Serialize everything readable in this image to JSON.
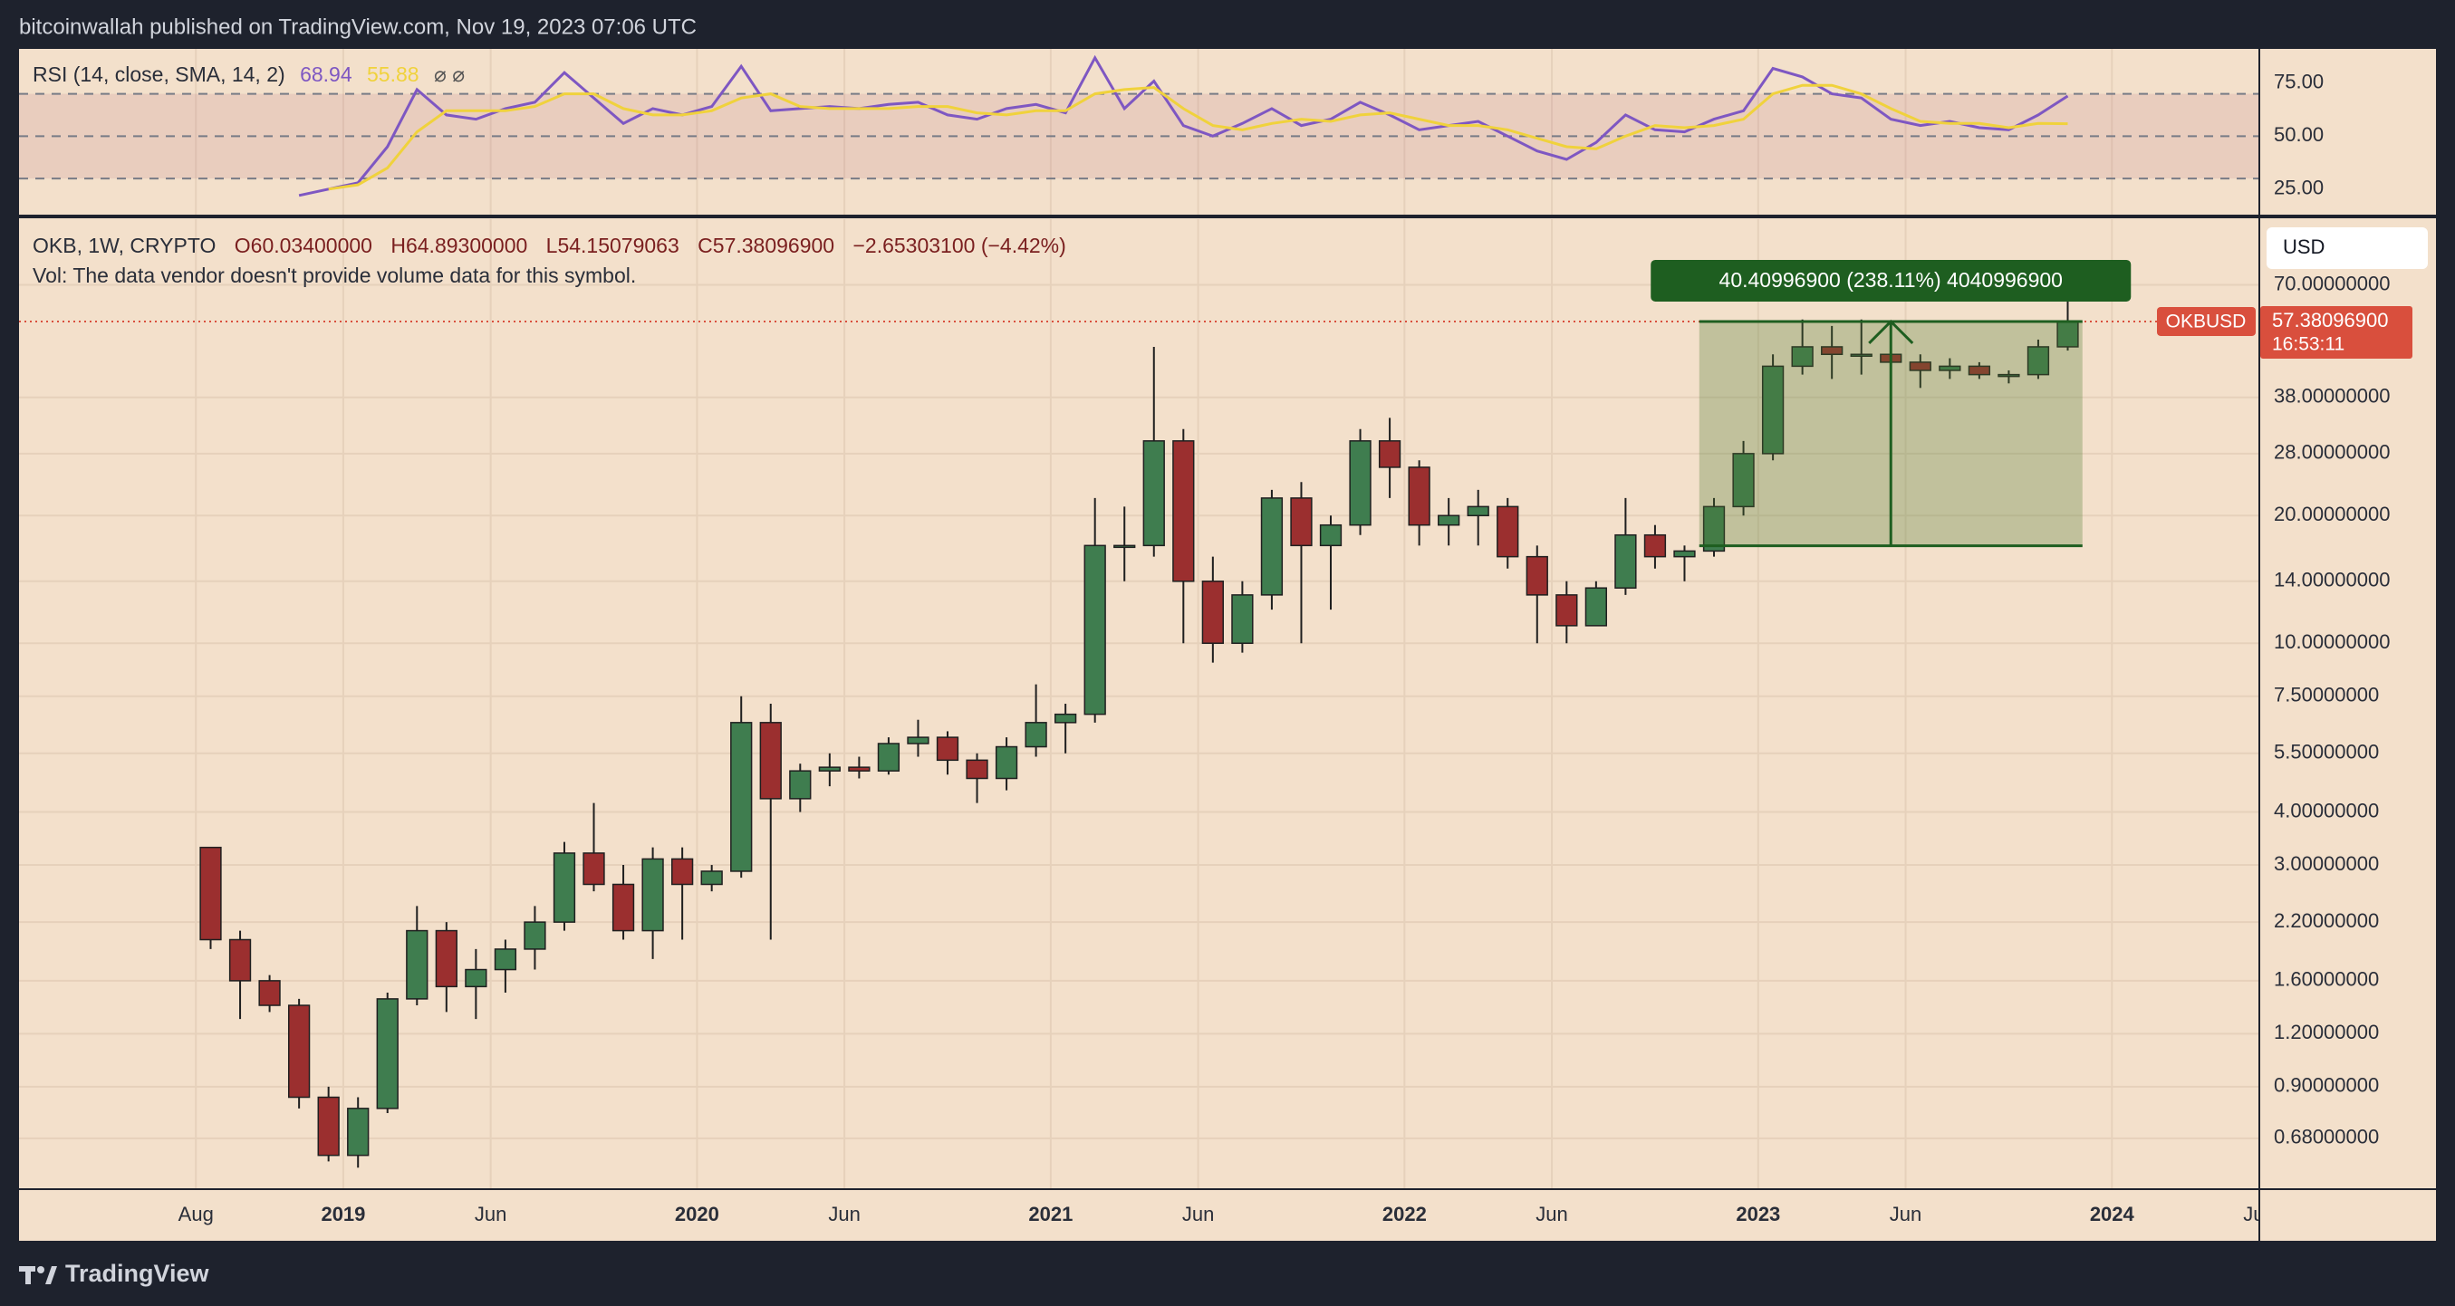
{
  "header": {
    "text": "bitcoinwallah published on TradingView.com, Nov 19, 2023 07:06 UTC"
  },
  "footer": {
    "brand": "TradingView"
  },
  "currency": "USD",
  "chart_data": [
    {
      "type": "candlestick",
      "symbol_line": "OKB, 1W, CRYPTO",
      "legend": {
        "open": "O60.03400000",
        "high": "H64.89300000",
        "low": "L54.15079063",
        "close": "C57.38096900",
        "change": "−2.65303100 (−4.42%)"
      },
      "volume_note": "Vol: The data vendor doesn't provide volume data for this symbol.",
      "x": [
        "2018-08",
        "2018-09",
        "2018-10",
        "2018-11",
        "2018-12",
        "2019-01",
        "2019-02",
        "2019-03",
        "2019-04",
        "2019-05",
        "2019-06",
        "2019-07",
        "2019-08",
        "2019-09",
        "2019-10",
        "2019-11",
        "2019-12",
        "2020-01",
        "2020-02",
        "2020-03",
        "2020-04",
        "2020-05",
        "2020-06",
        "2020-07",
        "2020-08",
        "2020-09",
        "2020-10",
        "2020-11",
        "2020-12",
        "2021-01",
        "2021-02",
        "2021-03",
        "2021-04",
        "2021-05",
        "2021-06",
        "2021-07",
        "2021-08",
        "2021-09",
        "2021-10",
        "2021-11",
        "2021-12",
        "2022-01",
        "2022-02",
        "2022-03",
        "2022-04",
        "2022-05",
        "2022-06",
        "2022-07",
        "2022-08",
        "2022-09",
        "2022-10",
        "2022-11",
        "2022-12",
        "2023-01",
        "2023-02",
        "2023-03",
        "2023-04",
        "2023-05",
        "2023-06",
        "2023-07",
        "2023-08",
        "2023-09",
        "2023-10",
        "2023-11"
      ],
      "open": [
        3.3,
        2.0,
        1.6,
        1.4,
        0.85,
        0.62,
        0.8,
        1.45,
        2.1,
        1.55,
        1.7,
        1.9,
        2.2,
        3.2,
        2.7,
        2.1,
        3.1,
        2.7,
        2.9,
        6.5,
        4.3,
        5.0,
        5.1,
        5.0,
        5.8,
        6.0,
        5.3,
        4.8,
        5.7,
        6.5,
        6.8,
        17,
        17,
        30,
        14,
        10,
        13,
        22,
        17,
        19,
        30,
        26,
        19,
        20,
        21,
        16,
        13,
        11,
        13.5,
        18,
        16,
        16.5,
        21,
        28,
        45,
        50,
        48,
        48,
        46,
        44,
        45,
        43,
        43,
        50
      ],
      "high": [
        3.3,
        2.1,
        1.65,
        1.45,
        0.9,
        0.85,
        1.5,
        2.4,
        2.2,
        1.9,
        2.0,
        2.4,
        3.4,
        4.2,
        3.0,
        3.3,
        3.3,
        3.0,
        7.5,
        7.2,
        5.2,
        5.5,
        5.4,
        6.0,
        6.6,
        6.2,
        5.5,
        6.0,
        8.0,
        7.2,
        22,
        21,
        50,
        32,
        16,
        14,
        23,
        24,
        20,
        32,
        34,
        27,
        22,
        23,
        22,
        17,
        14,
        14,
        22,
        19,
        17,
        22,
        30,
        48,
        58,
        56,
        58,
        50,
        48,
        47,
        46,
        44,
        52,
        65
      ],
      "low": [
        1.9,
        1.3,
        1.35,
        0.8,
        0.6,
        0.58,
        0.78,
        1.4,
        1.35,
        1.3,
        1.5,
        1.7,
        2.1,
        2.6,
        2.0,
        1.8,
        2.0,
        2.6,
        2.8,
        2.0,
        4.0,
        4.6,
        4.8,
        4.9,
        5.4,
        4.9,
        4.2,
        4.5,
        5.4,
        5.5,
        6.5,
        14,
        16,
        10,
        9,
        9.5,
        12,
        10,
        12,
        18,
        22,
        17,
        17,
        17,
        15,
        10,
        10,
        11,
        13,
        15,
        14,
        16,
        20,
        27,
        43,
        42,
        43,
        43,
        40,
        42,
        42,
        41,
        42,
        49
      ],
      "close": [
        2.0,
        1.6,
        1.4,
        0.85,
        0.62,
        0.8,
        1.45,
        2.1,
        1.55,
        1.7,
        1.9,
        2.2,
        3.2,
        2.7,
        2.1,
        3.1,
        2.7,
        2.9,
        6.5,
        4.3,
        5.0,
        5.1,
        5.0,
        5.8,
        6.0,
        5.3,
        4.8,
        5.7,
        6.5,
        6.8,
        17,
        17,
        30,
        14,
        10,
        13,
        22,
        17,
        19,
        30,
        26,
        19,
        20,
        21,
        16,
        13,
        11,
        13.5,
        18,
        16,
        16.5,
        21,
        28,
        45,
        50,
        48,
        48,
        46,
        44,
        45,
        43,
        43,
        50,
        57.380969
      ],
      "up_color": "#3f7d4f",
      "down_color": "#9b2f2f",
      "log_scale": true,
      "grid": true,
      "ylim": [
        0.516,
        100
      ],
      "yticks": [
        {
          "value": 70,
          "label": "70.00000000"
        },
        {
          "value": 38,
          "label": "38.00000000"
        },
        {
          "value": 28,
          "label": "28.00000000"
        },
        {
          "value": 20,
          "label": "20.00000000"
        },
        {
          "value": 14,
          "label": "14.00000000"
        },
        {
          "value": 10,
          "label": "10.00000000"
        },
        {
          "value": 7.5,
          "label": "7.50000000"
        },
        {
          "value": 5.5,
          "label": "5.50000000"
        },
        {
          "value": 4,
          "label": "4.00000000"
        },
        {
          "value": 3,
          "label": "3.00000000"
        },
        {
          "value": 2.2,
          "label": "2.20000000"
        },
        {
          "value": 1.6,
          "label": "1.60000000"
        },
        {
          "value": 1.2,
          "label": "1.20000000"
        },
        {
          "value": 0.9,
          "label": "0.90000000"
        },
        {
          "value": 0.68,
          "label": "0.68000000"
        }
      ],
      "xlim": [
        "2018-02",
        "2024-06"
      ],
      "xticks": [
        {
          "value": "2018-08",
          "label": "Aug"
        },
        {
          "value": "2019-01",
          "label": "2019"
        },
        {
          "value": "2019-06",
          "label": "Jun"
        },
        {
          "value": "2020-01",
          "label": "2020"
        },
        {
          "value": "2020-06",
          "label": "Jun"
        },
        {
          "value": "2021-01",
          "label": "2021"
        },
        {
          "value": "2021-06",
          "label": "Jun"
        },
        {
          "value": "2022-01",
          "label": "2022"
        },
        {
          "value": "2022-06",
          "label": "Jun"
        },
        {
          "value": "2023-01",
          "label": "2023"
        },
        {
          "value": "2023-06",
          "label": "Jun"
        },
        {
          "value": "2024-01",
          "label": "2024"
        },
        {
          "value": "2024-06",
          "label": "Jun"
        }
      ],
      "last_price": 57.380969,
      "last_price_label": "57.38096900",
      "symbol_tag": "OKBUSD",
      "countdown": "16:53:11",
      "price_color": "#d94f3d",
      "measure": {
        "label": "40.40996900 (238.11%) 4040996900",
        "from": 16.97,
        "to": 57.380969,
        "start": "2022-11",
        "end": "2023-12",
        "color": "#1e5e20"
      }
    },
    {
      "type": "line",
      "title": "RSI (14, close, SMA, 14, 2)",
      "icons": "⌀ ⌀",
      "x": [
        "2018-08",
        "2018-09",
        "2018-10",
        "2018-11",
        "2018-12",
        "2019-01",
        "2019-02",
        "2019-03",
        "2019-04",
        "2019-05",
        "2019-06",
        "2019-07",
        "2019-08",
        "2019-09",
        "2019-10",
        "2019-11",
        "2019-12",
        "2020-01",
        "2020-02",
        "2020-03",
        "2020-04",
        "2020-05",
        "2020-06",
        "2020-07",
        "2020-08",
        "2020-09",
        "2020-10",
        "2020-11",
        "2020-12",
        "2021-01",
        "2021-02",
        "2021-03",
        "2021-04",
        "2021-05",
        "2021-06",
        "2021-07",
        "2021-08",
        "2021-09",
        "2021-10",
        "2021-11",
        "2021-12",
        "2022-01",
        "2022-02",
        "2022-03",
        "2022-04",
        "2022-05",
        "2022-06",
        "2022-07",
        "2022-08",
        "2022-09",
        "2022-10",
        "2022-11",
        "2022-12",
        "2023-01",
        "2023-02",
        "2023-03",
        "2023-04",
        "2023-05",
        "2023-06",
        "2023-07",
        "2023-08",
        "2023-09",
        "2023-10",
        "2023-11"
      ],
      "series": [
        {
          "color": "#7e57c2",
          "values": [
            null,
            null,
            null,
            22,
            25,
            28,
            45,
            72,
            60,
            58,
            63,
            66,
            80,
            68,
            56,
            63,
            60,
            64,
            83,
            62,
            63,
            64,
            63,
            65,
            66,
            60,
            58,
            63,
            65,
            61,
            87,
            63,
            76,
            55,
            50,
            56,
            63,
            55,
            58,
            66,
            60,
            53,
            55,
            57,
            50,
            43,
            39,
            47,
            60,
            53,
            52,
            58,
            62,
            82,
            78,
            70,
            68,
            58,
            55,
            57,
            54,
            53,
            60,
            68.94
          ]
        },
        {
          "color": "#f0d23c",
          "values": [
            null,
            null,
            null,
            null,
            25,
            27,
            35,
            52,
            62,
            62,
            62,
            64,
            70,
            70,
            63,
            60,
            60,
            62,
            68,
            70,
            64,
            63,
            63,
            63,
            64,
            64,
            61,
            60,
            62,
            62,
            70,
            72,
            73,
            63,
            55,
            53,
            56,
            58,
            57,
            60,
            61,
            58,
            55,
            55,
            53,
            49,
            45,
            44,
            50,
            55,
            54,
            55,
            58,
            70,
            74,
            74,
            70,
            63,
            57,
            56,
            56,
            54,
            56,
            55.88
          ]
        }
      ],
      "ylim": [
        12.5,
        91.2
      ],
      "yticks": [
        {
          "value": 75,
          "label": "75.00"
        },
        {
          "value": 50,
          "label": "50.00"
        },
        {
          "value": 25,
          "label": "25.00"
        }
      ],
      "bands": [
        30,
        50,
        70
      ],
      "band_fill": "#b4647a"
    }
  ]
}
